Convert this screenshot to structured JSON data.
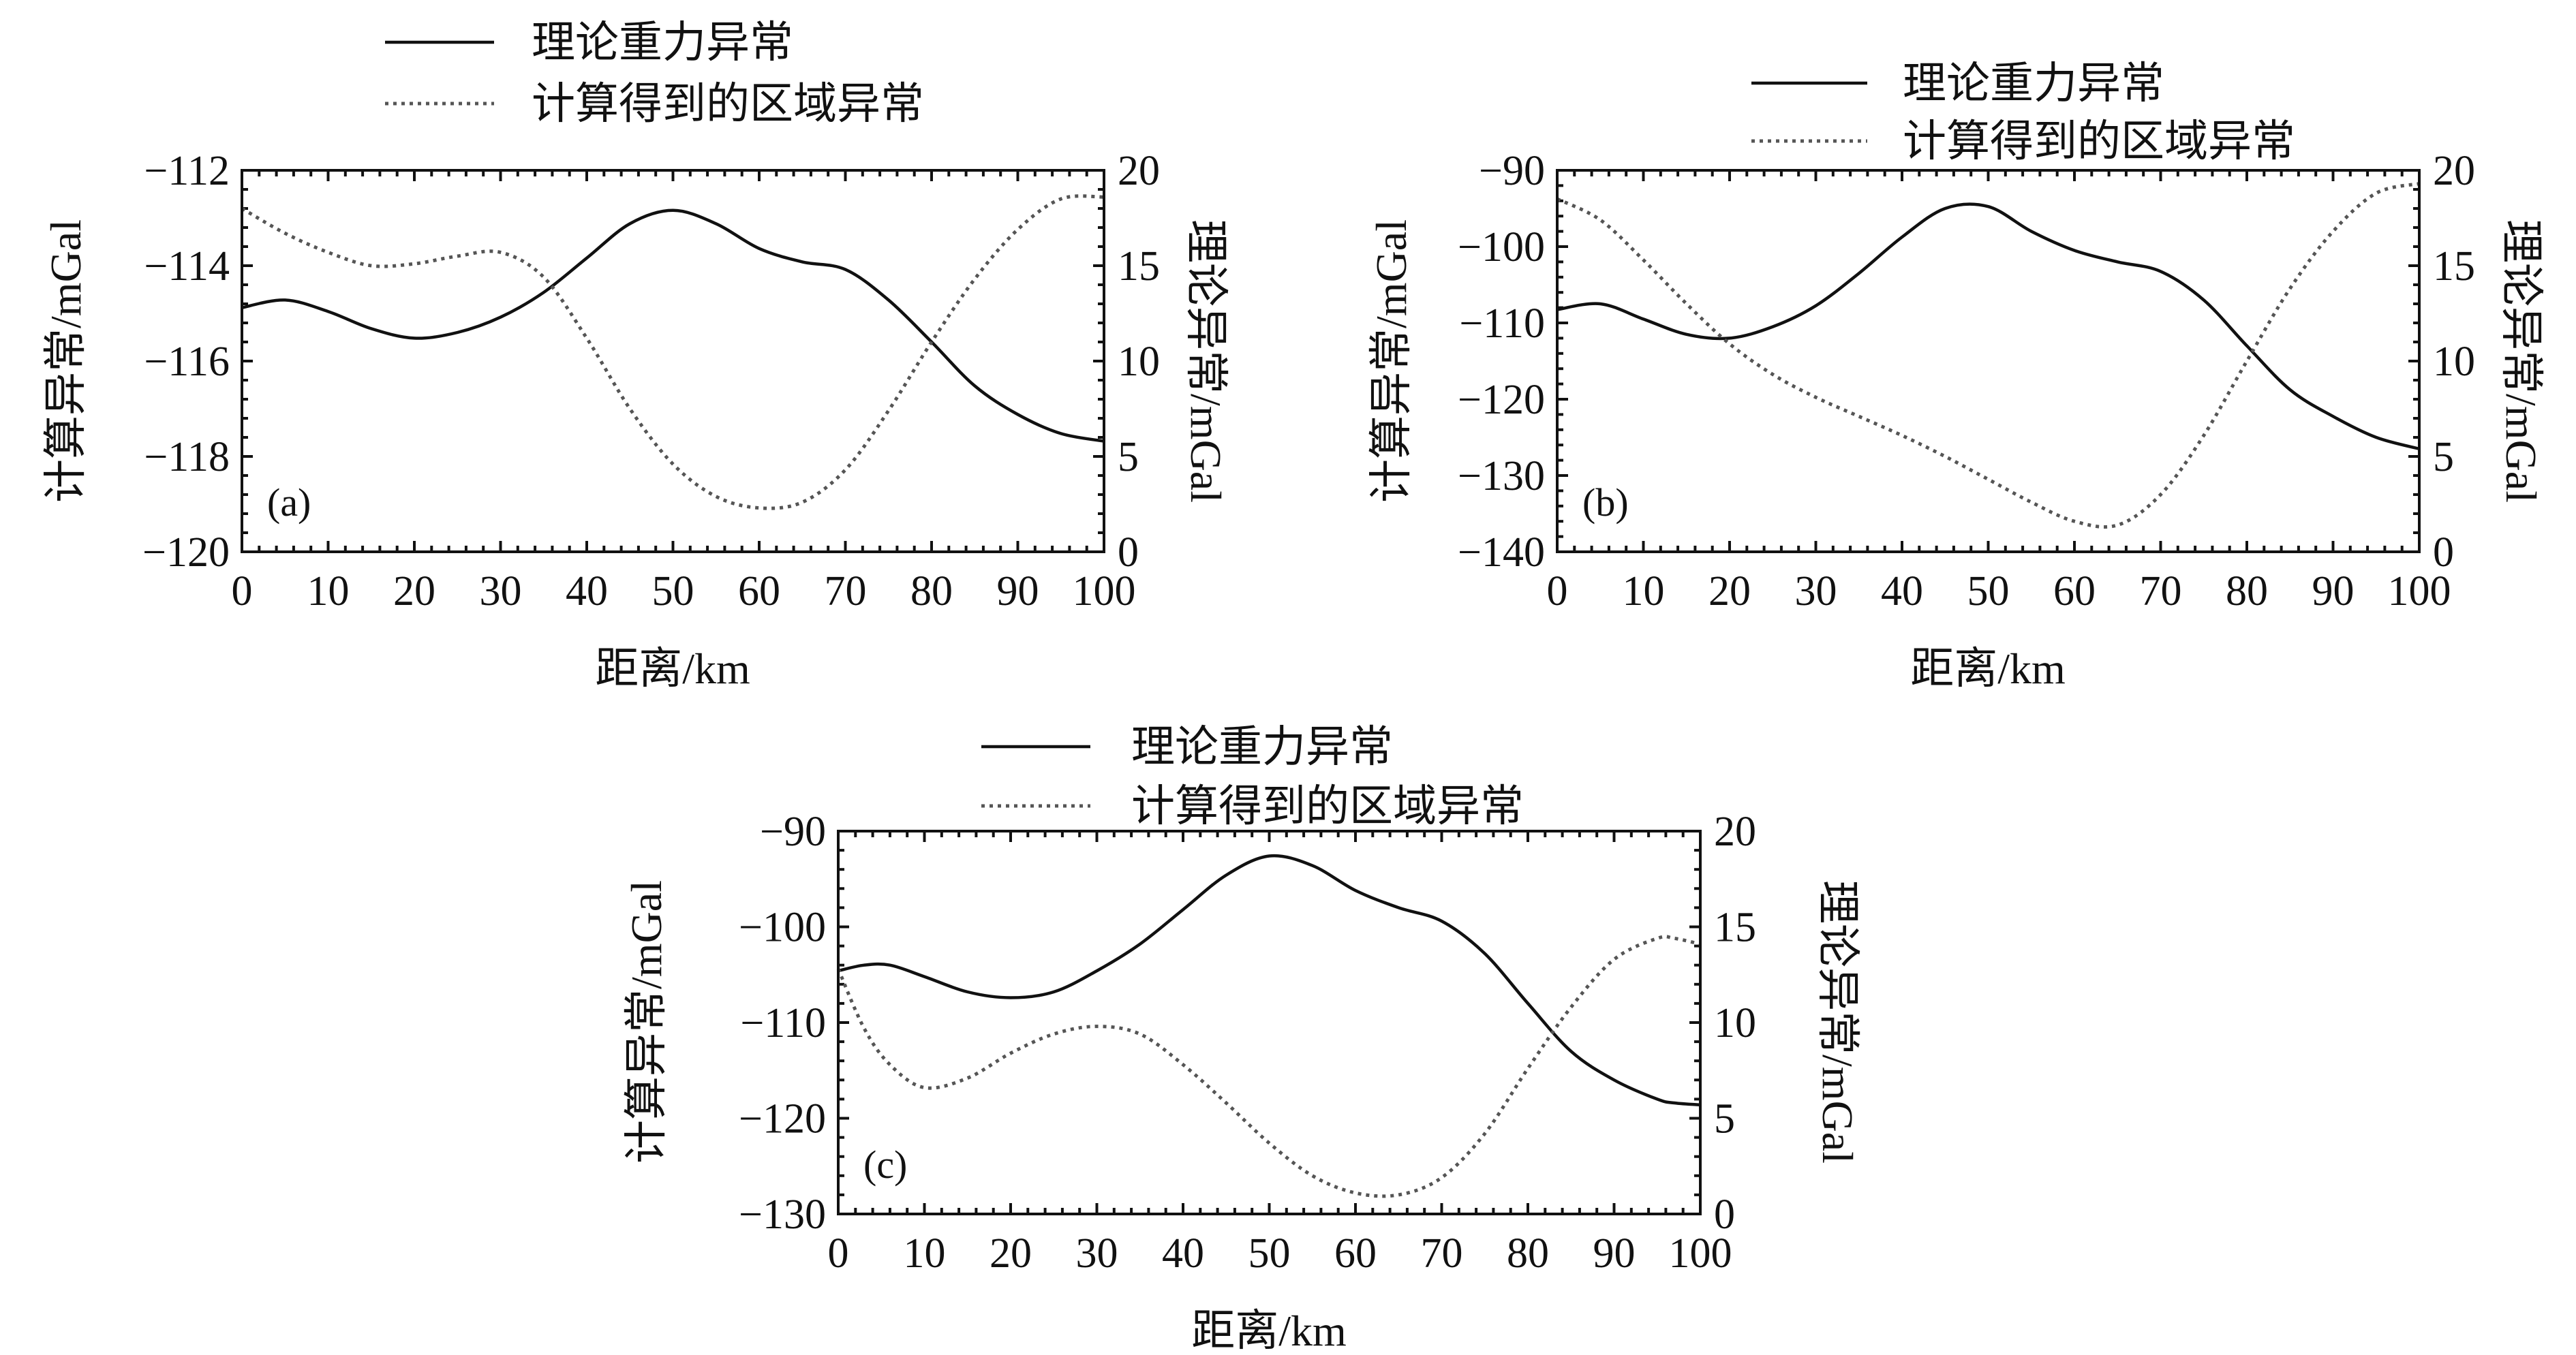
{
  "legend": {
    "solid_label": "理论重力异常",
    "dotted_label": "计算得到的区域异常"
  },
  "chart_data": [
    {
      "type": "line",
      "panel_label": "(a)",
      "xlabel": "距离/km",
      "ylabel_left": "计算异常/mGal",
      "ylabel_right": "理论异常/mGal",
      "xlim": [
        0,
        100
      ],
      "ylim_left": [
        -120,
        -112
      ],
      "ylim_right": [
        0,
        20
      ],
      "x_ticks": [
        0,
        10,
        20,
        30,
        40,
        50,
        60,
        70,
        80,
        90,
        100
      ],
      "y_ticks_left": [
        -112,
        -114,
        -116,
        -118,
        -120
      ],
      "y_ticks_right": [
        20,
        15,
        10,
        5,
        0
      ],
      "y_tick_labels_left": [
        "−112",
        "−114",
        "−116",
        "−118",
        "−120"
      ],
      "y_tick_labels_right": [
        "20",
        "15",
        "10",
        "5",
        "0"
      ],
      "x": [
        0,
        5,
        10,
        15,
        20,
        25,
        30,
        35,
        40,
        45,
        50,
        55,
        60,
        65,
        70,
        75,
        80,
        85,
        90,
        95,
        100
      ],
      "series": [
        {
          "name": "理论重力异常",
          "axis": "right",
          "style": "solid",
          "values": [
            12.8,
            13.2,
            12.6,
            11.7,
            11.2,
            11.5,
            12.3,
            13.6,
            15.4,
            17.2,
            17.9,
            17.2,
            15.9,
            15.2,
            14.8,
            13.2,
            11.0,
            8.7,
            7.2,
            6.2,
            5.8
          ]
        },
        {
          "name": "计算得到的区域异常",
          "axis": "right",
          "style": "dotted",
          "values": [
            18.0,
            16.7,
            15.7,
            15.0,
            15.1,
            15.5,
            15.7,
            14.4,
            11.2,
            7.5,
            4.6,
            2.9,
            2.3,
            2.6,
            4.3,
            7.4,
            11.0,
            14.3,
            16.9,
            18.5,
            18.6
          ]
        }
      ]
    },
    {
      "type": "line",
      "panel_label": "(b)",
      "xlabel": "距离/km",
      "ylabel_left": "计算异常/mGal",
      "ylabel_right": "理论异常/mGal",
      "xlim": [
        0,
        100
      ],
      "ylim_left": [
        -140,
        -90
      ],
      "ylim_right": [
        0,
        20
      ],
      "x_ticks": [
        0,
        10,
        20,
        30,
        40,
        50,
        60,
        70,
        80,
        90,
        100
      ],
      "y_ticks_left": [
        -90,
        -100,
        -110,
        -120,
        -130,
        -140
      ],
      "y_ticks_right": [
        20,
        15,
        10,
        5,
        0
      ],
      "y_tick_labels_left": [
        "−90",
        "−100",
        "−110",
        "−120",
        "−130",
        "−140"
      ],
      "y_tick_labels_right": [
        "20",
        "15",
        "10",
        "5",
        "0"
      ],
      "x": [
        0,
        5,
        10,
        15,
        20,
        25,
        30,
        35,
        40,
        45,
        50,
        55,
        60,
        65,
        70,
        75,
        80,
        85,
        90,
        95,
        100
      ],
      "series": [
        {
          "name": "理论重力异常",
          "axis": "right",
          "style": "solid",
          "values": [
            12.7,
            13.0,
            12.2,
            11.4,
            11.2,
            11.8,
            12.9,
            14.6,
            16.5,
            18.0,
            18.1,
            16.8,
            15.8,
            15.2,
            14.7,
            13.2,
            10.8,
            8.5,
            7.1,
            6.0,
            5.4
          ]
        },
        {
          "name": "计算得到的区域异常",
          "axis": "right",
          "style": "dotted",
          "values": [
            18.5,
            17.4,
            15.3,
            13.0,
            10.9,
            9.3,
            8.1,
            7.1,
            6.1,
            5.0,
            3.8,
            2.6,
            1.6,
            1.4,
            3.0,
            6.1,
            10.0,
            13.8,
            16.8,
            18.8,
            19.3
          ]
        }
      ]
    },
    {
      "type": "line",
      "panel_label": "(c)",
      "xlabel": "距离/km",
      "ylabel_left": "计算异常/mGal",
      "ylabel_right": "理论异常/mGal",
      "xlim": [
        0,
        100
      ],
      "ylim_left": [
        -130,
        -90
      ],
      "ylim_right": [
        0,
        20
      ],
      "x_ticks": [
        0,
        10,
        20,
        30,
        40,
        50,
        60,
        70,
        80,
        90,
        100
      ],
      "y_ticks_left": [
        -90,
        -100,
        -110,
        -120,
        -130
      ],
      "y_ticks_right": [
        20,
        15,
        10,
        5,
        0
      ],
      "y_tick_labels_left": [
        "−90",
        "−100",
        "−110",
        "−120",
        "−130"
      ],
      "y_tick_labels_right": [
        "20",
        "15",
        "10",
        "5",
        "0"
      ],
      "x": [
        0,
        3,
        6,
        10,
        15,
        20,
        25,
        30,
        35,
        40,
        45,
        50,
        55,
        60,
        65,
        70,
        75,
        80,
        85,
        90,
        95,
        97,
        100
      ],
      "series": [
        {
          "name": "理论重力异常",
          "axis": "right",
          "style": "solid",
          "values": [
            12.7,
            13.0,
            13.0,
            12.4,
            11.6,
            11.3,
            11.6,
            12.7,
            14.1,
            15.9,
            17.7,
            18.7,
            18.2,
            16.9,
            16.0,
            15.3,
            13.6,
            11.0,
            8.5,
            7.0,
            6.0,
            5.8,
            5.7
          ]
        },
        {
          "name": "计算得到的区域异常",
          "axis": "right",
          "style": "dotted",
          "values": [
            12.8,
            9.7,
            7.8,
            6.6,
            7.1,
            8.4,
            9.4,
            9.8,
            9.4,
            7.8,
            5.8,
            3.7,
            2.0,
            1.1,
            1.0,
            1.9,
            4.2,
            7.6,
            10.8,
            13.3,
            14.4,
            14.4,
            14.1
          ]
        }
      ]
    }
  ]
}
